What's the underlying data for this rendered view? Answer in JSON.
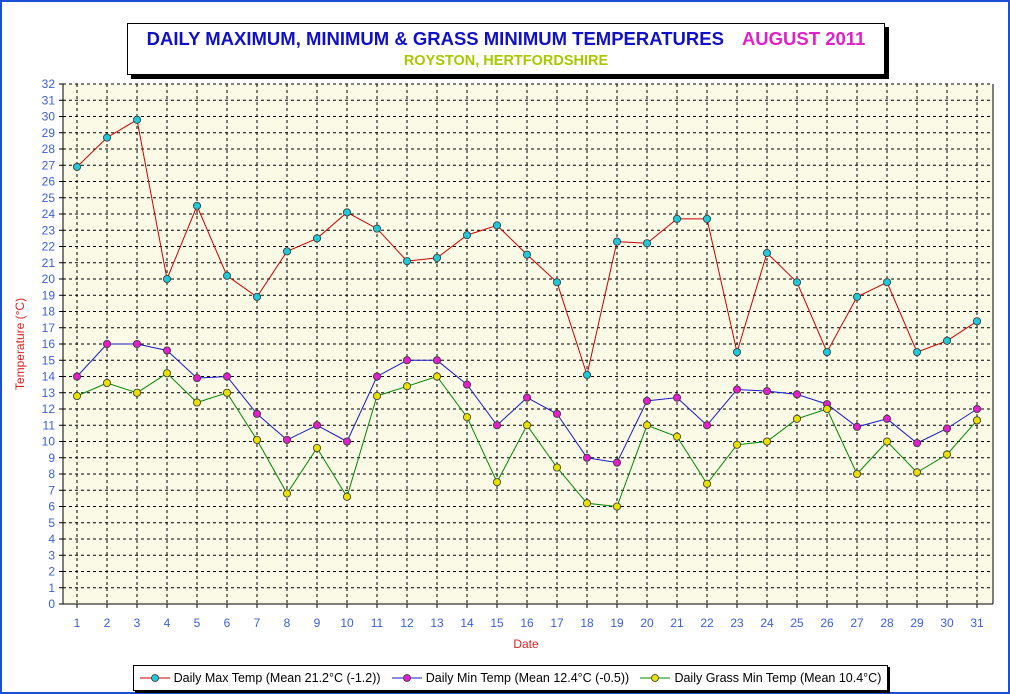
{
  "title": "DAILY MAXIMUM, MINIMUM & GRASS MINIMUM TEMPERATURES",
  "month": "AUGUST 2011",
  "subtitle": "ROYSTON, HERTFORDSHIRE",
  "colors": {
    "title": "#1010c8",
    "month": "#e020c8",
    "subtitle": "#a8c800",
    "axis_label": "#e02020",
    "tick_label": "#3a5fd8",
    "plot_bg": "#fafae6"
  },
  "chart_data": {
    "type": "line",
    "title": "DAILY MAXIMUM, MINIMUM & GRASS MINIMUM TEMPERATURES",
    "xlabel": "Date",
    "ylabel": "Temperature (°C)",
    "ylim": [
      0,
      32
    ],
    "grid": true,
    "legend_position": "bottom",
    "x": [
      1,
      2,
      3,
      4,
      5,
      6,
      7,
      8,
      9,
      10,
      11,
      12,
      13,
      14,
      15,
      16,
      17,
      18,
      19,
      20,
      21,
      22,
      23,
      24,
      25,
      26,
      27,
      28,
      29,
      30,
      31
    ],
    "series": [
      {
        "name": "Daily Max Temp (Mean 21.2°C (-1.2))",
        "line_color": "#cc0000",
        "marker_color": "#20c8d8",
        "values": [
          26.9,
          28.7,
          29.8,
          20.0,
          24.5,
          20.2,
          18.9,
          21.7,
          22.5,
          24.1,
          23.1,
          21.1,
          21.3,
          22.7,
          23.3,
          21.5,
          19.8,
          14.1,
          22.3,
          22.2,
          23.7,
          23.7,
          15.5,
          21.6,
          19.8,
          15.5,
          18.9,
          19.8,
          15.5,
          16.2,
          17.4
        ]
      },
      {
        "name": "Daily Min Temp (Mean 12.4°C (-0.5))",
        "line_color": "#1a1acc",
        "marker_color": "#e020c8",
        "values": [
          14.0,
          16.0,
          16.0,
          15.6,
          13.9,
          14.0,
          11.7,
          10.1,
          11.0,
          10.0,
          14.0,
          15.0,
          15.0,
          13.5,
          11.0,
          12.7,
          11.7,
          9.0,
          8.7,
          12.5,
          12.7,
          11.0,
          13.2,
          13.1,
          12.9,
          12.3,
          10.9,
          11.4,
          9.9,
          10.8,
          12.0
        ]
      },
      {
        "name": "Daily Grass Min Temp (Mean 10.4°C)",
        "line_color": "#008800",
        "marker_color": "#e8e000",
        "values": [
          12.8,
          13.6,
          13.0,
          14.2,
          12.4,
          13.0,
          10.1,
          6.8,
          9.6,
          6.6,
          12.8,
          13.4,
          14.0,
          11.5,
          7.5,
          11.0,
          8.4,
          6.2,
          6.0,
          11.0,
          10.3,
          7.4,
          9.8,
          10.0,
          11.4,
          12.0,
          8.0,
          10.0,
          8.1,
          9.2,
          11.3
        ]
      }
    ]
  }
}
